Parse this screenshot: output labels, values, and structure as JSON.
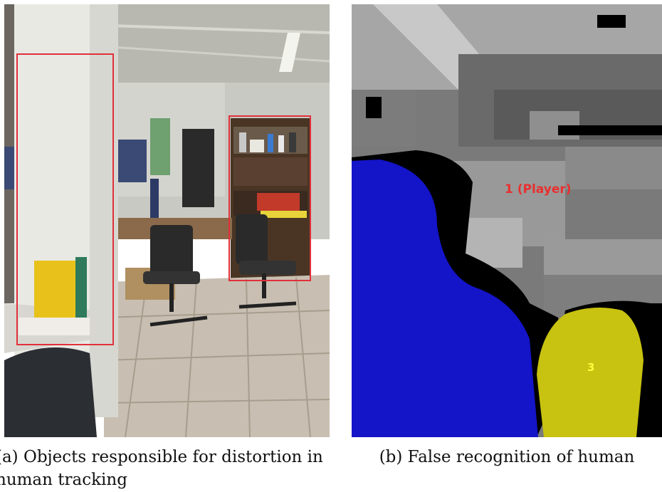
{
  "figure": {
    "panel_a": {
      "caption": "(a) Objects responsible for distortion in human tracking"
    },
    "panel_b": {
      "caption": "(b) False recognition of human",
      "labels": {
        "player": "1 (Player)",
        "object3": "3"
      },
      "colors": {
        "player_region": "#1414c8",
        "object3_region": "#c8c210",
        "background": "#000000"
      }
    }
  }
}
